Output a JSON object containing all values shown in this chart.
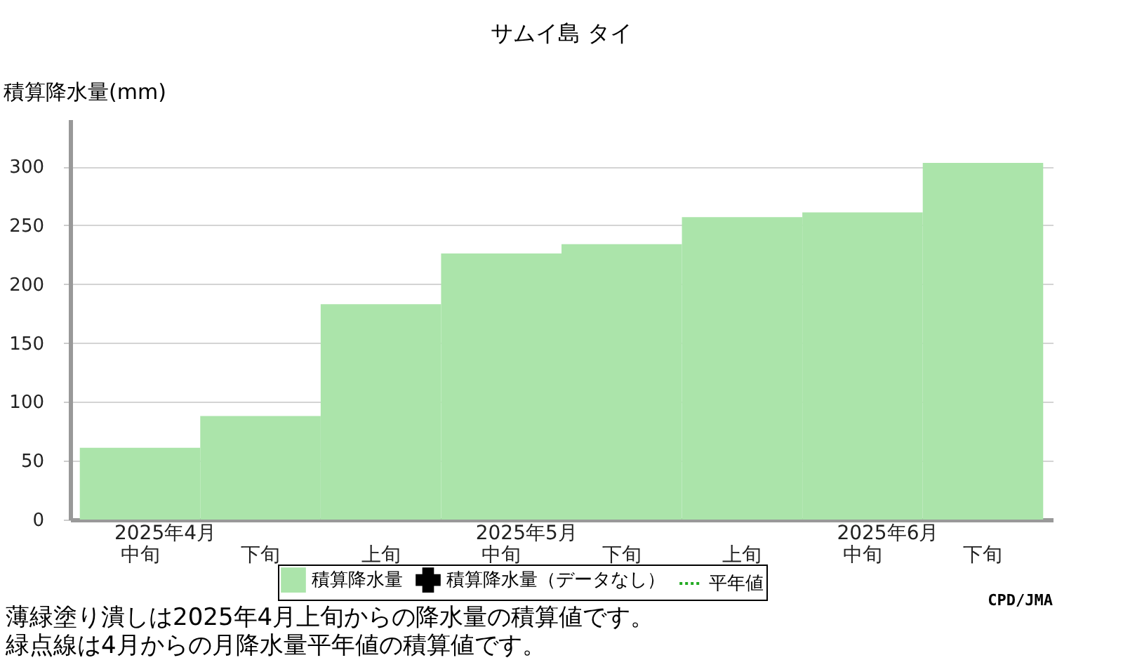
{
  "chart_data": {
    "type": "bar",
    "title": "サムイ島 タイ",
    "ylabel": "積算降水量(mm)",
    "categories": [
      "中旬",
      "下旬",
      "上旬",
      "中旬",
      "下旬",
      "上旬",
      "中旬",
      "下旬"
    ],
    "series": [
      {
        "name": "積算降水量",
        "type": "bar",
        "color": "#abe4aa",
        "values": [
          61,
          88,
          183,
          226,
          234,
          257,
          261,
          303
        ]
      },
      {
        "name": "積算降水量（データなし）",
        "type": "scatter",
        "marker": "cross",
        "color": "#000000",
        "values": [
          null,
          null,
          null,
          null,
          null,
          null,
          null,
          null
        ]
      },
      {
        "name": "平年値",
        "type": "line",
        "line_style": "dotted",
        "color": "#22aa22",
        "values": [
          null,
          null,
          null,
          null,
          null,
          null,
          null,
          null
        ]
      }
    ],
    "ylim": [
      0,
      340
    ],
    "yticks": [
      0,
      50,
      100,
      150,
      200,
      250,
      300
    ],
    "grid": "y",
    "legend": "bottom",
    "annotations": [
      "2025年4月",
      "2025年5月",
      "2025年6月",
      "薄緑塗り潰しは2025年4月上旬からの降水量の積算値です。",
      "緑点線は4月からの月降水量平年値の積算値です。",
      "CPD/JMA"
    ]
  }
}
